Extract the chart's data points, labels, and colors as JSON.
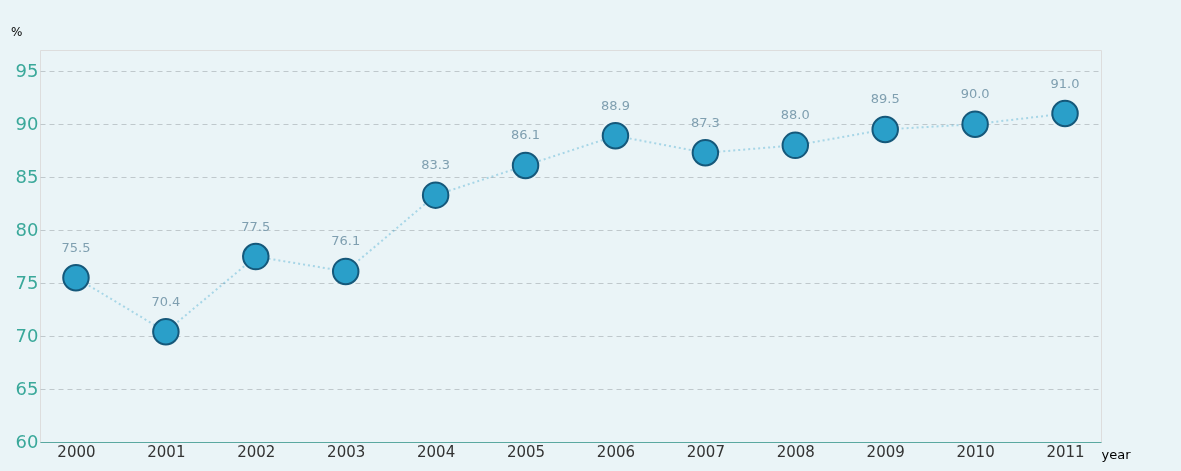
{
  "chart_data": {
    "type": "line",
    "xlabel": "year",
    "ylabel": "%",
    "categories": [
      "2000",
      "2001",
      "2002",
      "2003",
      "2004",
      "2005",
      "2006",
      "2007",
      "2008",
      "2009",
      "2010",
      "2011"
    ],
    "series": [
      {
        "color": "#2a9fc9",
        "values": [
          75.5,
          70.4,
          77.5,
          76.1,
          83.3,
          86.1,
          88.9,
          87.3,
          88.0,
          89.5,
          90.0,
          91.0
        ],
        "value_labels": [
          "75.5",
          "70.4",
          "77.5",
          "76.1",
          "83.3",
          "86.1",
          "88.9",
          "87.3",
          "88.0",
          "89.5",
          "90.0",
          "91.0"
        ]
      }
    ],
    "ylim": [
      60,
      97
    ],
    "yticks": [
      60,
      65,
      70,
      75,
      80,
      85,
      90,
      95
    ],
    "grid": "y",
    "marker": "circle",
    "line_style": "dotted"
  }
}
